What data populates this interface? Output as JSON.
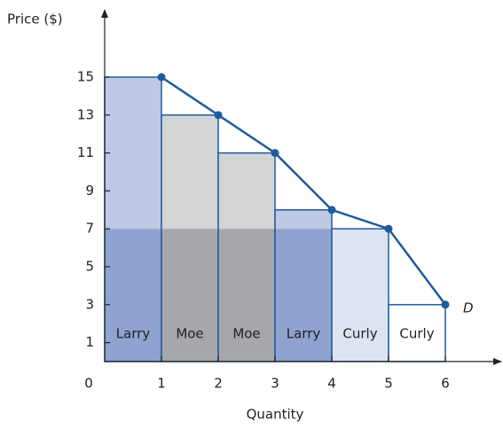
{
  "chart_data": {
    "type": "line",
    "ylabel": "Price ($)",
    "xlabel": "Quantity",
    "x": [
      1,
      2,
      3,
      4,
      5,
      6
    ],
    "series": [
      {
        "name": "D",
        "color": "#1f5c9c",
        "values": [
          15,
          13,
          11,
          8,
          7,
          3
        ]
      }
    ],
    "bar_labels": [
      "Larry",
      "Moe",
      "Moe",
      "Larry",
      "Curly",
      "Curly"
    ],
    "bar_colors": [
      [
        "#bfc9e3",
        "#8ea3cf"
      ],
      [
        "#d3d4d6",
        "#a6a7aa"
      ],
      [
        "#d3d4d6",
        "#a6a7aa"
      ],
      [
        "#bfc9e3",
        "#8ea3cf"
      ],
      [
        "#dde3f1",
        "#dde3f1"
      ],
      [
        "#ffffff",
        "#ffffff"
      ]
    ],
    "price": 7,
    "xlim": [
      0,
      7
    ],
    "ylim": [
      0,
      18.6
    ],
    "xticks": [
      0,
      1,
      2,
      3,
      4,
      5,
      6
    ],
    "yticks": [
      1,
      3,
      5,
      7,
      9,
      11,
      13,
      15
    ]
  }
}
